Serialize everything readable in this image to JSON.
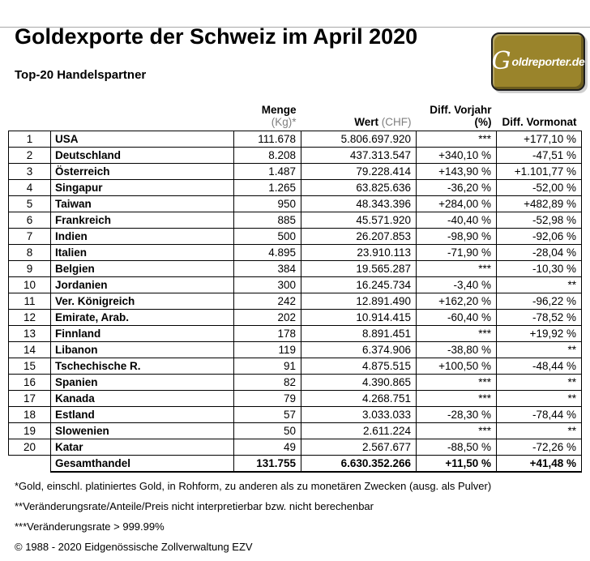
{
  "header": {
    "title": "Goldexporte der Schweiz im April 2020",
    "logo": {
      "initial": "G",
      "rest": "oldreporter.de",
      "bg_color": "#9a842b",
      "text_color": "#ffffff"
    }
  },
  "subtitle": "Top-20 Handelspartner",
  "table": {
    "columns": {
      "menge_label": "Menge",
      "menge_unit": " (Kg)*",
      "wert_label": "Wert",
      "wert_unit": " (CHF)",
      "diff_vorjahr_label": "Diff. Vorjahr (%)",
      "diff_vormonat_label": "Diff. Vormonat"
    },
    "rows": [
      {
        "rank": "1",
        "country": "USA",
        "menge": "111.678",
        "wert": "5.806.697.920",
        "diff_vorjahr": "***",
        "diff_vormonat": "+177,10 %"
      },
      {
        "rank": "2",
        "country": "Deutschland",
        "menge": "8.208",
        "wert": "437.313.547",
        "diff_vorjahr": "+340,10 %",
        "diff_vormonat": "-47,51 %"
      },
      {
        "rank": "3",
        "country": "Österreich",
        "menge": "1.487",
        "wert": "79.228.414",
        "diff_vorjahr": "+143,90 %",
        "diff_vormonat": "+1.101,77 %"
      },
      {
        "rank": "4",
        "country": "Singapur",
        "menge": "1.265",
        "wert": "63.825.636",
        "diff_vorjahr": "-36,20 %",
        "diff_vormonat": "-52,00 %"
      },
      {
        "rank": "5",
        "country": "Taiwan",
        "menge": "950",
        "wert": "48.343.396",
        "diff_vorjahr": "+284,00 %",
        "diff_vormonat": "+482,89 %"
      },
      {
        "rank": "6",
        "country": "Frankreich",
        "menge": "885",
        "wert": "45.571.920",
        "diff_vorjahr": "-40,40 %",
        "diff_vormonat": "-52,98 %"
      },
      {
        "rank": "7",
        "country": "Indien",
        "menge": "500",
        "wert": "26.207.853",
        "diff_vorjahr": "-98,90 %",
        "diff_vormonat": "-92,06 %"
      },
      {
        "rank": "8",
        "country": "Italien",
        "menge": "4.895",
        "wert": "23.910.113",
        "diff_vorjahr": "-71,90 %",
        "diff_vormonat": "-28,04 %"
      },
      {
        "rank": "9",
        "country": "Belgien",
        "menge": "384",
        "wert": "19.565.287",
        "diff_vorjahr": "***",
        "diff_vormonat": "-10,30 %"
      },
      {
        "rank": "10",
        "country": "Jordanien",
        "menge": "300",
        "wert": "16.245.734",
        "diff_vorjahr": "-3,40 %",
        "diff_vormonat": "**"
      },
      {
        "rank": "11",
        "country": "Ver. Königreich",
        "menge": "242",
        "wert": "12.891.490",
        "diff_vorjahr": "+162,20 %",
        "diff_vormonat": "-96,22 %"
      },
      {
        "rank": "12",
        "country": "Emirate, Arab.",
        "menge": "202",
        "wert": "10.914.415",
        "diff_vorjahr": "-60,40 %",
        "diff_vormonat": "-78,52 %"
      },
      {
        "rank": "13",
        "country": "Finnland",
        "menge": "178",
        "wert": "8.891.451",
        "diff_vorjahr": "***",
        "diff_vormonat": "+19,92 %"
      },
      {
        "rank": "14",
        "country": "Libanon",
        "menge": "119",
        "wert": "6.374.906",
        "diff_vorjahr": "-38,80 %",
        "diff_vormonat": "**"
      },
      {
        "rank": "15",
        "country": "Tschechische R.",
        "menge": "91",
        "wert": "4.875.515",
        "diff_vorjahr": "+100,50 %",
        "diff_vormonat": "-48,44 %"
      },
      {
        "rank": "16",
        "country": "Spanien",
        "menge": "82",
        "wert": "4.390.865",
        "diff_vorjahr": "***",
        "diff_vormonat": "**"
      },
      {
        "rank": "17",
        "country": "Kanada",
        "menge": "79",
        "wert": "4.268.751",
        "diff_vorjahr": "***",
        "diff_vormonat": "**"
      },
      {
        "rank": "18",
        "country": "Estland",
        "menge": "57",
        "wert": "3.033.033",
        "diff_vorjahr": "-28,30 %",
        "diff_vormonat": "-78,44 %"
      },
      {
        "rank": "19",
        "country": "Slowenien",
        "menge": "50",
        "wert": "2.611.224",
        "diff_vorjahr": "***",
        "diff_vormonat": "**"
      },
      {
        "rank": "20",
        "country": "Katar",
        "menge": "49",
        "wert": "2.567.677",
        "diff_vorjahr": "-88,50 %",
        "diff_vormonat": "-72,26 %"
      }
    ],
    "total_row": {
      "label": "Gesamthandel",
      "menge": "131.755",
      "wert": "6.630.352.266",
      "diff_vorjahr": "+11,50 %",
      "diff_vormonat": "+41,48 %"
    }
  },
  "footnotes": [
    "*Gold, einschl. platiniertes Gold, in Rohform, zu anderen als zu monetären Zwecken (ausg. als Pulver)",
    "**Veränderungsrate/Anteile/Preis nicht interpretierbar bzw. nicht berechenbar",
    "***Veränderungsrate > 999.99%",
    "© 1988 - 2020 Eidgenössische Zollverwaltung EZV"
  ]
}
